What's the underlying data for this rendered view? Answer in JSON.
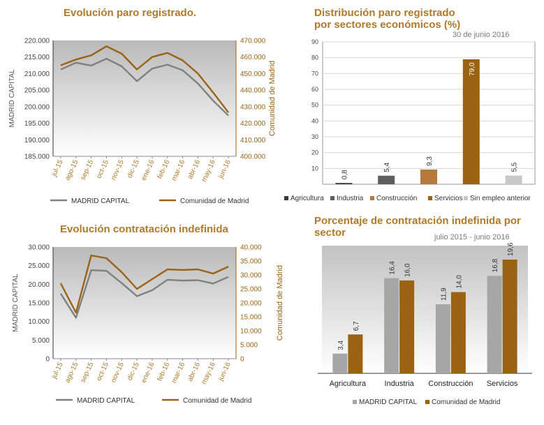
{
  "charts": [
    {
      "id": "registered",
      "title": "Evolución paro registrado.",
      "type": "line",
      "categories": [
        "jul-15",
        "ago-15",
        "sep-15",
        "oct-15",
        "nov-15",
        "dic-15",
        "ene-16",
        "feb-16",
        "mar-16",
        "abr-16",
        "may-16",
        "jun-16"
      ],
      "y1_ticks": [
        "185.000",
        "190.000",
        "195.000",
        "200.000",
        "205.000",
        "210.000",
        "215.000",
        "220.000"
      ],
      "y1lim": [
        185000,
        220000
      ],
      "y2_ticks": [
        "400.000",
        "410.000",
        "420.000",
        "430.000",
        "440.000",
        "450.000",
        "460.000",
        "470.000"
      ],
      "y2lim": [
        400000,
        470000
      ],
      "y1label": "MADRID CAPITAL",
      "y2label": "Comunidad de Madrid",
      "series": [
        {
          "name": "MADRID CAPITAL",
          "color": "#808080",
          "axis": "y1",
          "values": [
            211200,
            213300,
            212400,
            214500,
            212200,
            207700,
            211500,
            212700,
            211000,
            207000,
            201800,
            197300
          ]
        },
        {
          "name": "Comunidad de Madrid",
          "color": "#9c6214",
          "axis": "y2",
          "values": [
            455000,
            458500,
            461000,
            466500,
            462000,
            452500,
            460000,
            462500,
            458000,
            450000,
            438500,
            426500
          ]
        }
      ],
      "legend": [
        "MADRID CAPITAL",
        "Comunidad de Madrid"
      ]
    },
    {
      "id": "sectors",
      "title": "Distribución paro registrado\npor sectores económicos (%)",
      "subtitle": "30 de junio 2016",
      "type": "bar",
      "categories": [
        "Agricultura",
        "Industria",
        "Construcción",
        "Servicios",
        "Sin empleo anterior"
      ],
      "values": [
        0.8,
        5.4,
        9.3,
        79.0,
        5.5
      ],
      "value_labels": [
        "0,8",
        "5,4",
        "9,3",
        "79,0",
        "5,5"
      ],
      "colors": [
        "#3a3a3a",
        "#5e5e5e",
        "#b47a3c",
        "#9c6214",
        "#c8c8c8"
      ],
      "y_ticks": [
        "10",
        "20",
        "30",
        "40",
        "50",
        "60",
        "70",
        "80",
        "90"
      ],
      "ylim": [
        0,
        90
      ]
    },
    {
      "id": "contracts",
      "title": "Evolución contratación indefinida",
      "type": "line",
      "categories": [
        "jul-15",
        "ago-15",
        "sep-15",
        "oct-15",
        "nov-15",
        "dic-15",
        "ene-16",
        "feb-16",
        "mar-16",
        "abr-16",
        "may-16",
        "jun-16"
      ],
      "y1_ticks": [
        "0",
        "5.000",
        "10.000",
        "15.000",
        "20.000",
        "25.000",
        "30.000"
      ],
      "y1lim": [
        0,
        30000
      ],
      "y2_ticks": [
        "0",
        "5.000",
        "10.000",
        "15.000",
        "20.000",
        "25.000",
        "30.000",
        "35.000",
        "40.000"
      ],
      "y2lim": [
        0,
        40000
      ],
      "y1label": "MADRID CAPITAL",
      "y2label": "Comunidad de Madrid",
      "series": [
        {
          "name": "MADRID CAPITAL",
          "color": "#808080",
          "axis": "y1",
          "values": [
            17500,
            11000,
            23800,
            23600,
            20300,
            16800,
            18400,
            21200,
            21000,
            21100,
            20200,
            22000
          ]
        },
        {
          "name": "Comunidad de Madrid",
          "color": "#9c6214",
          "axis": "y2",
          "values": [
            27000,
            16500,
            37000,
            36000,
            31000,
            25000,
            28500,
            32000,
            31800,
            32000,
            30500,
            33000
          ]
        }
      ],
      "legend": [
        "MADRID CAPITAL",
        "Comunidad de Madrid"
      ]
    },
    {
      "id": "pct",
      "title": "Porcentaje de contratación indefinida por\nsector",
      "subtitle": "julio 2015 - junio 2016",
      "type": "bar",
      "categories": [
        "Agricultura",
        "Industria",
        "Construcción",
        "Servicios"
      ],
      "ylim": [
        0,
        22
      ],
      "series": [
        {
          "name": "MADRID CAPITAL",
          "color": "#a6a6a6",
          "values": [
            3.4,
            16.4,
            11.9,
            16.8
          ],
          "labels": [
            "3,4",
            "16,4",
            "11,9",
            "16,8"
          ]
        },
        {
          "name": "Comunidad de Madrid",
          "color": "#9c6214",
          "values": [
            6.7,
            16.0,
            14.0,
            19.6
          ],
          "labels": [
            "6,7",
            "16,0",
            "14,0",
            "19,6"
          ]
        }
      ],
      "legend": [
        "MADRID CAPITAL",
        "Comunidad de Madrid"
      ]
    }
  ]
}
